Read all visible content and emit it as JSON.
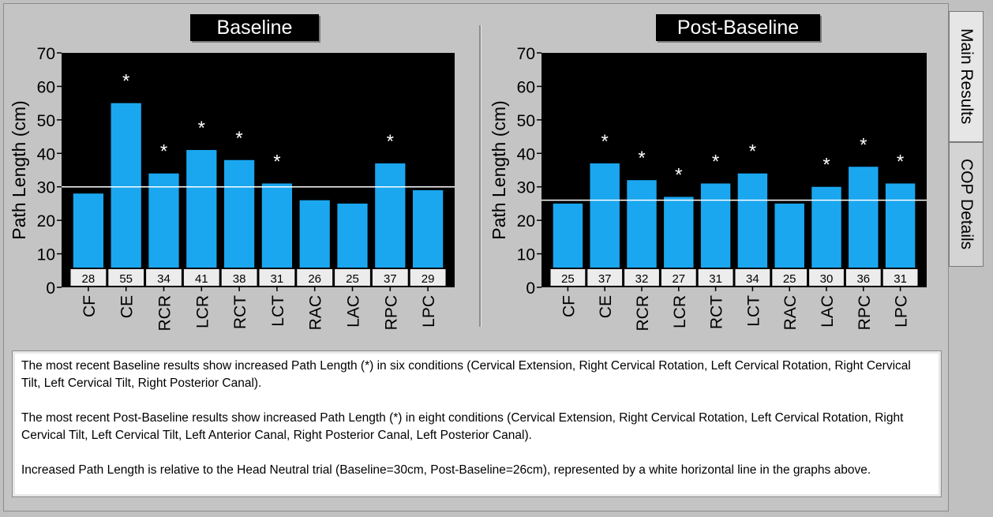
{
  "tabs": [
    {
      "label": "Main Results",
      "active": true
    },
    {
      "label": "COP Details",
      "active": false
    }
  ],
  "chart_data": [
    {
      "type": "bar",
      "title": "Baseline",
      "ylabel": "Path Length (cm)",
      "ylim": [
        0,
        70
      ],
      "yticks": [
        0,
        10,
        20,
        30,
        40,
        50,
        60,
        70
      ],
      "categories": [
        "CF",
        "CE",
        "RCR",
        "LCR",
        "RCT",
        "LCT",
        "RAC",
        "LAC",
        "RPC",
        "LPC"
      ],
      "values": [
        28,
        55,
        34,
        41,
        38,
        31,
        26,
        25,
        37,
        29
      ],
      "value_labels": [
        "28",
        "55",
        "34",
        "41",
        "38",
        "31",
        "26",
        "25",
        "37",
        "29"
      ],
      "flagged": [
        false,
        true,
        true,
        true,
        true,
        true,
        false,
        false,
        true,
        false
      ],
      "flag_mark": "*",
      "reference_line": 30,
      "bar_color": "#1aa7f0",
      "plot_bg": "#000000",
      "reference_color": "#ffffff"
    },
    {
      "type": "bar",
      "title": "Post-Baseline",
      "ylabel": "Path Length (cm)",
      "ylim": [
        0,
        70
      ],
      "yticks": [
        0,
        10,
        20,
        30,
        40,
        50,
        60,
        70
      ],
      "categories": [
        "CF",
        "CE",
        "RCR",
        "LCR",
        "RCT",
        "LCT",
        "RAC",
        "LAC",
        "RPC",
        "LPC"
      ],
      "values": [
        25,
        37,
        32,
        27,
        31,
        34,
        25,
        30,
        36,
        31
      ],
      "value_labels": [
        "25",
        "37",
        "32",
        "27",
        "31",
        "34",
        "25",
        "30",
        "36",
        "31"
      ],
      "flagged": [
        false,
        true,
        true,
        true,
        true,
        true,
        false,
        true,
        true,
        true
      ],
      "flag_mark": "*",
      "reference_line": 26,
      "bar_color": "#1aa7f0",
      "plot_bg": "#000000",
      "reference_color": "#ffffff"
    }
  ],
  "notes": [
    "The most recent Baseline results show increased Path Length (*) in six conditions (Cervical Extension, Right Cervical Rotation, Left Cervical Rotation, Right Cervical Tilt, Left Cervical Tilt, Right Posterior Canal).",
    "The most recent Post-Baseline results show increased Path Length (*) in eight conditions (Cervical Extension, Right Cervical Rotation, Left Cervical Rotation, Right Cervical Tilt, Left Cervical Tilt, Left Anterior Canal, Right Posterior Canal, Left Posterior Canal).",
    "Increased Path Length is relative to the Head Neutral trial (Baseline=30cm, Post-Baseline=26cm), represented by a white horizontal line in the graphs above."
  ]
}
